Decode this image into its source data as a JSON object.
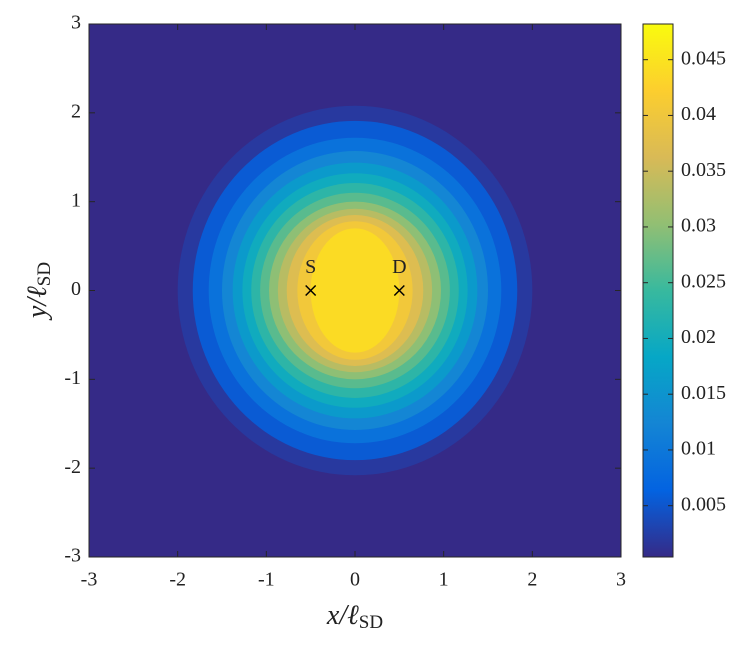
{
  "chart_data": {
    "type": "contour",
    "xlabel": "x/ℓ",
    "xlabel_sub": "SD",
    "ylabel": "y/ℓ",
    "ylabel_sub": "SD",
    "xlim": [
      -3,
      3
    ],
    "ylim": [
      -3,
      3
    ],
    "xticks": [
      -3,
      -2,
      -1,
      0,
      1,
      2,
      3
    ],
    "yticks": [
      -3,
      -2,
      -1,
      0,
      1,
      2,
      3
    ],
    "center": [
      0,
      0
    ],
    "clim": [
      0.0004,
      0.0482
    ],
    "cticks": [
      0.005,
      0.01,
      0.015,
      0.02,
      0.025,
      0.03,
      0.035,
      0.04,
      0.045
    ],
    "colormap": [
      "#352a87",
      "#0363e1",
      "#1485d4",
      "#06a7c6",
      "#38b99e",
      "#92bf73",
      "#d9ba56",
      "#fcce2e",
      "#f9fb0e"
    ],
    "contours": [
      {
        "level": 0.002,
        "rx": 2.0,
        "ry": 2.08
      },
      {
        "level": 0.0055,
        "rx": 1.83,
        "ry": 1.91
      },
      {
        "level": 0.009,
        "rx": 1.65,
        "ry": 1.72
      },
      {
        "level": 0.0125,
        "rx": 1.5,
        "ry": 1.57
      },
      {
        "level": 0.016,
        "rx": 1.38,
        "ry": 1.44
      },
      {
        "level": 0.0195,
        "rx": 1.27,
        "ry": 1.32
      },
      {
        "level": 0.023,
        "rx": 1.17,
        "ry": 1.21
      },
      {
        "level": 0.0265,
        "rx": 1.07,
        "ry": 1.1
      },
      {
        "level": 0.03,
        "rx": 0.97,
        "ry": 1.0
      },
      {
        "level": 0.0335,
        "rx": 0.87,
        "ry": 0.92
      },
      {
        "level": 0.037,
        "rx": 0.77,
        "ry": 0.85
      },
      {
        "level": 0.0405,
        "rx": 0.65,
        "ry": 0.78
      },
      {
        "level": 0.044,
        "rx": 0.5,
        "ry": 0.7
      }
    ],
    "markers": [
      {
        "label": "S",
        "x": -0.5,
        "y": 0
      },
      {
        "label": "D",
        "x": 0.5,
        "y": 0
      }
    ]
  }
}
